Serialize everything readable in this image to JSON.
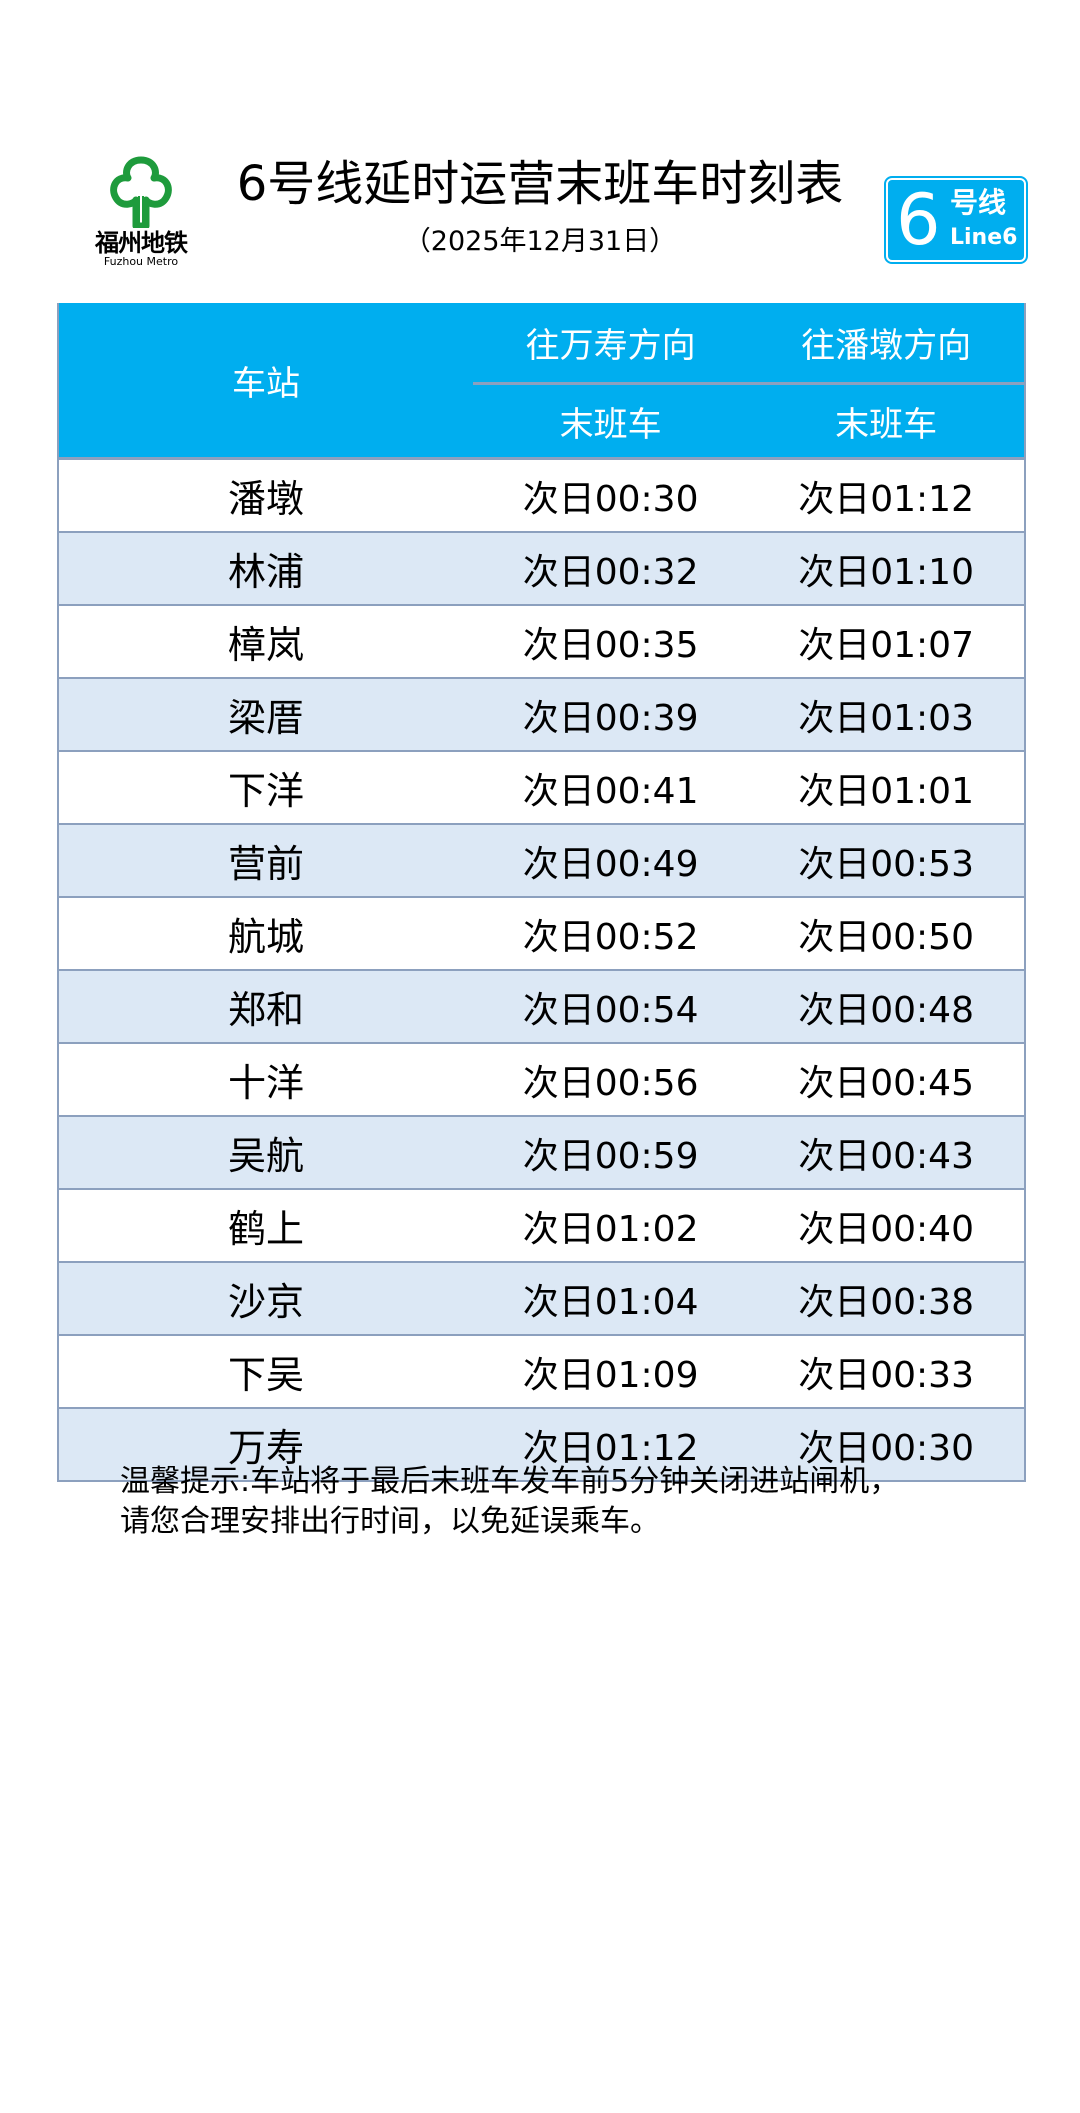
{
  "logo": {
    "cn": "福州地铁",
    "en": "Fuzhou Metro",
    "color": "#1E9B3C"
  },
  "header": {
    "title": "6号线延时运营末班车时刻表",
    "date": "（2025年12月31日）"
  },
  "badge": {
    "number": "6",
    "cn": "号线",
    "en": "Line6",
    "color": "#00AEEF"
  },
  "table": {
    "station_header": "车站",
    "directions": [
      "往万寿方向",
      "往潘墩方向"
    ],
    "sub_headers": [
      "末班车",
      "末班车"
    ],
    "rows": [
      {
        "station": "潘墩",
        "to_wanshou": "次日00:30",
        "to_pandun": "次日01:12"
      },
      {
        "station": "林浦",
        "to_wanshou": "次日00:32",
        "to_pandun": "次日01:10"
      },
      {
        "station": "樟岚",
        "to_wanshou": "次日00:35",
        "to_pandun": "次日01:07"
      },
      {
        "station": "梁厝",
        "to_wanshou": "次日00:39",
        "to_pandun": "次日01:03"
      },
      {
        "station": "下洋",
        "to_wanshou": "次日00:41",
        "to_pandun": "次日01:01"
      },
      {
        "station": "营前",
        "to_wanshou": "次日00:49",
        "to_pandun": "次日00:53"
      },
      {
        "station": "航城",
        "to_wanshou": "次日00:52",
        "to_pandun": "次日00:50"
      },
      {
        "station": "郑和",
        "to_wanshou": "次日00:54",
        "to_pandun": "次日00:48"
      },
      {
        "station": "十洋",
        "to_wanshou": "次日00:56",
        "to_pandun": "次日00:45"
      },
      {
        "station": "吴航",
        "to_wanshou": "次日00:59",
        "to_pandun": "次日00:43"
      },
      {
        "station": "鹤上",
        "to_wanshou": "次日01:02",
        "to_pandun": "次日00:40"
      },
      {
        "station": "沙京",
        "to_wanshou": "次日01:04",
        "to_pandun": "次日00:38"
      },
      {
        "station": "下吴",
        "to_wanshou": "次日01:09",
        "to_pandun": "次日00:33"
      },
      {
        "station": "万寿",
        "to_wanshou": "次日01:12",
        "to_pandun": "次日00:30"
      }
    ]
  },
  "note": {
    "line1": "温馨提示:车站将于最后末班车发车前5分钟关闭进站闸机，",
    "line2": "请您合理安排出行时间，以免延误乘车。"
  }
}
